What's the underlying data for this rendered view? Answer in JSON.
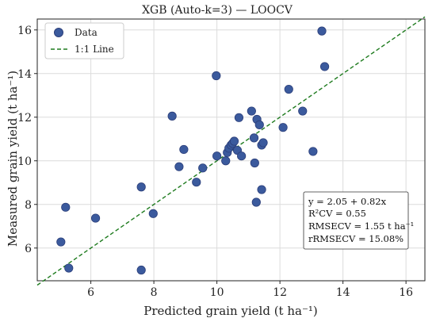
{
  "chart_data": {
    "type": "scatter",
    "title": "XGB (Auto-k=3) — LOOCV",
    "xlabel": "Predicted grain yield (t ha⁻¹)",
    "ylabel": "Measured grain yield (t ha⁻¹)",
    "xlim": [
      4.3,
      16.6
    ],
    "ylim": [
      4.5,
      16.5
    ],
    "xticks": [
      6,
      8,
      10,
      12,
      14,
      16
    ],
    "yticks": [
      6,
      8,
      10,
      12,
      14,
      16
    ],
    "grid": true,
    "legend_position": "top-left",
    "colors": {
      "points": "#3b5a9d",
      "point_edge": "#2c3f7a",
      "line": "#1e7b1e",
      "grid": "#dcdcdc"
    },
    "series": [
      {
        "name": "Data",
        "kind": "points",
        "points": [
          {
            "x": 5.05,
            "y": 6.28
          },
          {
            "x": 5.2,
            "y": 7.87
          },
          {
            "x": 5.3,
            "y": 5.08
          },
          {
            "x": 6.15,
            "y": 7.37
          },
          {
            "x": 7.6,
            "y": 8.8
          },
          {
            "x": 7.6,
            "y": 4.99
          },
          {
            "x": 7.98,
            "y": 7.58
          },
          {
            "x": 8.58,
            "y": 12.05
          },
          {
            "x": 8.8,
            "y": 9.73
          },
          {
            "x": 8.95,
            "y": 10.52
          },
          {
            "x": 9.35,
            "y": 9.02
          },
          {
            "x": 9.55,
            "y": 9.67
          },
          {
            "x": 9.98,
            "y": 13.9
          },
          {
            "x": 10.0,
            "y": 10.22
          },
          {
            "x": 10.28,
            "y": 10.0
          },
          {
            "x": 10.33,
            "y": 10.38
          },
          {
            "x": 10.38,
            "y": 10.58
          },
          {
            "x": 10.45,
            "y": 10.72
          },
          {
            "x": 10.5,
            "y": 10.8
          },
          {
            "x": 10.55,
            "y": 10.9
          },
          {
            "x": 10.65,
            "y": 10.48
          },
          {
            "x": 10.7,
            "y": 11.98
          },
          {
            "x": 10.78,
            "y": 10.22
          },
          {
            "x": 11.1,
            "y": 12.28
          },
          {
            "x": 11.18,
            "y": 11.05
          },
          {
            "x": 11.2,
            "y": 9.9
          },
          {
            "x": 11.25,
            "y": 8.1
          },
          {
            "x": 11.27,
            "y": 11.9
          },
          {
            "x": 11.35,
            "y": 11.65
          },
          {
            "x": 11.42,
            "y": 8.68
          },
          {
            "x": 11.42,
            "y": 10.72
          },
          {
            "x": 11.47,
            "y": 10.83
          },
          {
            "x": 12.1,
            "y": 11.53
          },
          {
            "x": 12.28,
            "y": 13.28
          },
          {
            "x": 12.72,
            "y": 12.28
          },
          {
            "x": 13.05,
            "y": 10.43
          },
          {
            "x": 13.33,
            "y": 15.95
          },
          {
            "x": 13.42,
            "y": 14.32
          }
        ]
      },
      {
        "name": "1:1 Line",
        "kind": "line",
        "style": "dashed",
        "x": [
          4.3,
          16.6
        ],
        "y": [
          4.3,
          16.6
        ]
      }
    ],
    "annotation": {
      "position": "bottom-right",
      "lines": [
        "y = 2.05 + 0.82x",
        "R²CV = 0.55",
        "RMSECV = 1.55 t ha⁻¹",
        "rRMSECV = 15.08%"
      ]
    }
  }
}
